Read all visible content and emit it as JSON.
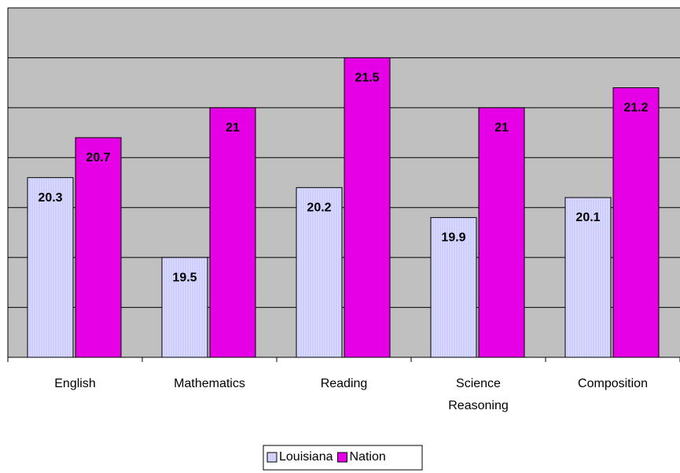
{
  "chart_data": {
    "type": "bar",
    "categories": [
      "English",
      "Mathematics",
      "Reading",
      "Science Reasoning",
      "Composition"
    ],
    "series": [
      {
        "name": "Louisiana",
        "color": "#ccccff",
        "values": [
          20.3,
          19.5,
          20.2,
          19.9,
          20.1
        ]
      },
      {
        "name": "Nation",
        "color": "#e600e6",
        "values": [
          20.7,
          21,
          21.5,
          21,
          21.2
        ]
      }
    ],
    "ylim": [
      18.5,
      22
    ],
    "yticks": [
      18.5,
      19,
      19.5,
      20,
      20.5,
      21,
      21.5,
      22
    ],
    "grid": true,
    "legend": "bottom"
  }
}
